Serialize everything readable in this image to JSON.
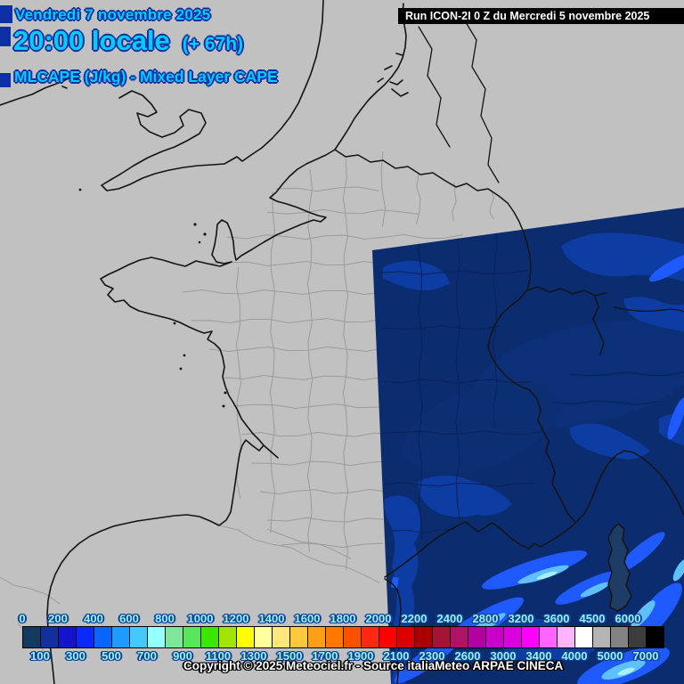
{
  "header": {
    "date": "Vendredi 7 novembre 2025",
    "time": "20:00 locale",
    "offset": "(+ 67h)",
    "parameter": "MLCAPE (J/kg) - Mixed Layer CAPE",
    "run": "Run ICON-2I 0 Z du Mercredi 5 novembre 2025"
  },
  "footer": {
    "copyright": "Copyright © 2025 Meteociel.fr - Source italiaMeteo ARPAE CINECA"
  },
  "legend": {
    "unit": "J/kg",
    "boundaries": [
      0,
      100,
      200,
      300,
      400,
      500,
      600,
      700,
      800,
      900,
      1000,
      1100,
      1200,
      1300,
      1400,
      1500,
      1600,
      1700,
      1800,
      1900,
      2000,
      2100,
      2200,
      2300,
      2400,
      2600,
      2800,
      3000,
      3200,
      3400,
      3600,
      4000,
      4500,
      5000,
      6000,
      7000
    ],
    "colors": [
      "#123a5f",
      "#132f9b",
      "#1414cd",
      "#0a28ff",
      "#0a64ff",
      "#1e9bff",
      "#46c8ff",
      "#96ffff",
      "#7de69b",
      "#5ae65a",
      "#3ce600",
      "#a0e600",
      "#ffff00",
      "#ffffa0",
      "#ffe67d",
      "#ffc83c",
      "#ffa014",
      "#ff7800",
      "#ff5000",
      "#ff2814",
      "#ff0000",
      "#dc0000",
      "#aa0000",
      "#a51436",
      "#af1464",
      "#b400a0",
      "#c800c8",
      "#dc00dc",
      "#ff00ff",
      "#ff64ff",
      "#ffb4ff",
      "#ffffff",
      "#b4b4b4",
      "#828282",
      "#3c3c3c",
      "#000000"
    ],
    "top_labels": [
      0,
      200,
      400,
      600,
      800,
      1000,
      1200,
      1400,
      1600,
      1800,
      2000,
      2200,
      2400,
      2800,
      3200,
      3600,
      4500,
      6000
    ],
    "bottom_labels": [
      100,
      300,
      500,
      700,
      900,
      1100,
      1300,
      1500,
      1700,
      1900,
      2100,
      2300,
      2600,
      3000,
      3400,
      4000,
      5000,
      7000
    ]
  },
  "map": {
    "background_color": "#c1c1c1",
    "coast_color": "#141414",
    "department_border_color": "#9b9b9b",
    "model_domain_base_color": "#0b2c6e",
    "model_domain_patch_color": "#0d3ca2",
    "model_domain_streak_colors": [
      "#1e5aff",
      "#5fc0ff",
      "#a5efff"
    ],
    "model_domain_inner_border_color": "#0a2158",
    "corsica_fill_color": "#1d3c66",
    "title_text_color": "#00ccff",
    "title_outline_color": "#0c2fa6",
    "legend_label_color": "#93f6ff",
    "run_box_background": "#000000",
    "run_box_text_color": "#ffffff",
    "copyright_text_color": "#ffffff"
  }
}
